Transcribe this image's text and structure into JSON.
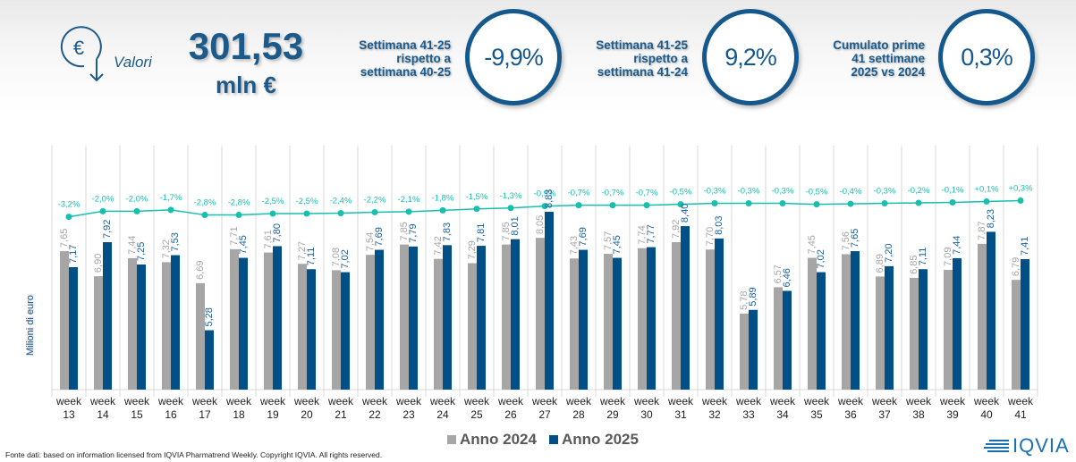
{
  "header": {
    "icon": "euro-coin-down-arrow-icon",
    "valori_label": "Valori",
    "total_value": "301,53",
    "total_unit": "mln €",
    "kpis": [
      {
        "label_lines": [
          "Settimana 41-25",
          "rispetto a",
          "settimana 40-25"
        ],
        "value": "-9,9%"
      },
      {
        "label_lines": [
          "Settimana 41-25",
          "rispetto a",
          "settimana 41-24"
        ],
        "value": "9,2%"
      },
      {
        "label_lines": [
          "Cumulato prime",
          "41 settimane",
          "2025 vs 2024"
        ],
        "value": "0,3%"
      }
    ]
  },
  "colors": {
    "primary": "#14588c",
    "bar_2024": "#a6a6a6",
    "bar_2025": "#004f86",
    "line": "#17bfae",
    "label_2024": "#a6a6a6",
    "label_2025": "#1f5f99",
    "grid": "#d9d9d9"
  },
  "chart_data": {
    "type": "bar",
    "title": "",
    "xlabel": "",
    "ylabel": "Milioni di euro",
    "categories": [
      "week 13",
      "week 14",
      "week 15",
      "week 16",
      "week 17",
      "week 18",
      "week 19",
      "week 20",
      "week 21",
      "week 22",
      "week 23",
      "week 24",
      "week 25",
      "week 26",
      "week 27",
      "week 28",
      "week 29",
      "week 30",
      "week 31",
      "week 32",
      "week 33",
      "week 34",
      "week 35",
      "week 36",
      "week 37",
      "week 38",
      "week 39",
      "week 40",
      "week 41"
    ],
    "category_lines": [
      [
        "week",
        "13"
      ],
      [
        "week",
        "14"
      ],
      [
        "week",
        "15"
      ],
      [
        "week",
        "16"
      ],
      [
        "week",
        "17"
      ],
      [
        "week",
        "18"
      ],
      [
        "week",
        "19"
      ],
      [
        "week",
        "20"
      ],
      [
        "week",
        "21"
      ],
      [
        "week",
        "22"
      ],
      [
        "week",
        "23"
      ],
      [
        "week",
        "24"
      ],
      [
        "week",
        "25"
      ],
      [
        "week",
        "26"
      ],
      [
        "week",
        "27"
      ],
      [
        "week",
        "28"
      ],
      [
        "week",
        "29"
      ],
      [
        "week",
        "30"
      ],
      [
        "week",
        "31"
      ],
      [
        "week",
        "32"
      ],
      [
        "week",
        "33"
      ],
      [
        "week",
        "34"
      ],
      [
        "week",
        "35"
      ],
      [
        "week",
        "36"
      ],
      [
        "week",
        "37"
      ],
      [
        "week",
        "38"
      ],
      [
        "week",
        "39"
      ],
      [
        "week",
        "40"
      ],
      [
        "week",
        "41"
      ]
    ],
    "series": [
      {
        "name": "Anno 2024",
        "values": [
          7.65,
          6.9,
          7.44,
          7.32,
          6.69,
          7.71,
          7.61,
          7.27,
          7.08,
          7.54,
          7.85,
          7.42,
          7.29,
          7.85,
          8.05,
          7.43,
          7.57,
          7.74,
          7.92,
          7.7,
          5.78,
          6.57,
          7.45,
          7.56,
          6.89,
          6.85,
          7.09,
          7.87,
          6.79
        ],
        "labels": [
          "7,65",
          "6,90",
          "7,44",
          "7,32",
          "6,69",
          "7,71",
          "7,61",
          "7,27",
          "7,08",
          "7,54",
          "7,85",
          "7,42",
          "7,29",
          "7,85",
          "8,05",
          "7,43",
          "7,57",
          "7,74",
          "7,92",
          "7,70",
          "5,78",
          "6,57",
          "7,45",
          "7,56",
          "6,89",
          "6,85",
          "7,09",
          "7,87",
          "6,79"
        ]
      },
      {
        "name": "Anno 2025",
        "values": [
          7.17,
          7.92,
          7.25,
          7.53,
          5.28,
          7.45,
          7.8,
          7.11,
          7.02,
          7.69,
          7.79,
          7.83,
          7.81,
          8.01,
          8.83,
          7.69,
          7.45,
          7.77,
          8.4,
          8.03,
          5.89,
          6.46,
          7.02,
          7.65,
          7.2,
          7.11,
          7.44,
          8.23,
          7.41
        ],
        "labels": [
          "7,17",
          "7,92",
          "7,25",
          "7,53",
          "5,28",
          "7,45",
          "7,80",
          "7,11",
          "7,02",
          "7,69",
          "7,79",
          "7,83",
          "7,81",
          "8,01",
          "8,83",
          "7,69",
          "7,45",
          "7,77",
          "8,40",
          "8,03",
          "5,89",
          "6,46",
          "7,02",
          "7,65",
          "7,20",
          "7,11",
          "7,44",
          "8,23",
          "7,41"
        ]
      }
    ],
    "cumulative_change": {
      "name": "Cumulato 2025 vs 2024 (%)",
      "values": [
        -3.2,
        -2.0,
        -2.0,
        -1.7,
        -2.8,
        -2.8,
        -2.5,
        -2.5,
        -2.4,
        -2.2,
        -2.1,
        -1.8,
        -1.5,
        -1.3,
        -0.9,
        -0.7,
        -0.7,
        -0.7,
        -0.5,
        -0.3,
        -0.3,
        -0.3,
        -0.5,
        -0.4,
        -0.3,
        -0.2,
        -0.1,
        0.1,
        0.3
      ],
      "labels": [
        "-3,2%",
        "-2,0%",
        "-2,0%",
        "-1,7%",
        "-2,8%",
        "-2,8%",
        "-2,5%",
        "-2,5%",
        "-2,4%",
        "-2,2%",
        "-2,1%",
        "-1,8%",
        "-1,5%",
        "-1,3%",
        "-0,9%",
        "-0,7%",
        "-0,7%",
        "-0,7%",
        "-0,5%",
        "-0,3%",
        "-0,3%",
        "-0,3%",
        "-0,5%",
        "-0,4%",
        "-0,3%",
        "-0,2%",
        "-0,1%",
        "+0,1%",
        "+0,3%"
      ]
    },
    "bar_ylim": [
      3.5,
      9.5
    ],
    "line_ylim": [
      -20,
      5
    ],
    "grid": true,
    "legend": {
      "position": "bottom",
      "entries": [
        "Anno 2024",
        "Anno 2025"
      ]
    }
  },
  "footer": {
    "source": "Fonte dati: based on information licensed from IQVIA Pharmatrend Weekly. Copyright IQVIA. All rights reserved."
  },
  "logo": {
    "text": "IQVIA",
    "icon": "iqvia-lines-icon"
  }
}
